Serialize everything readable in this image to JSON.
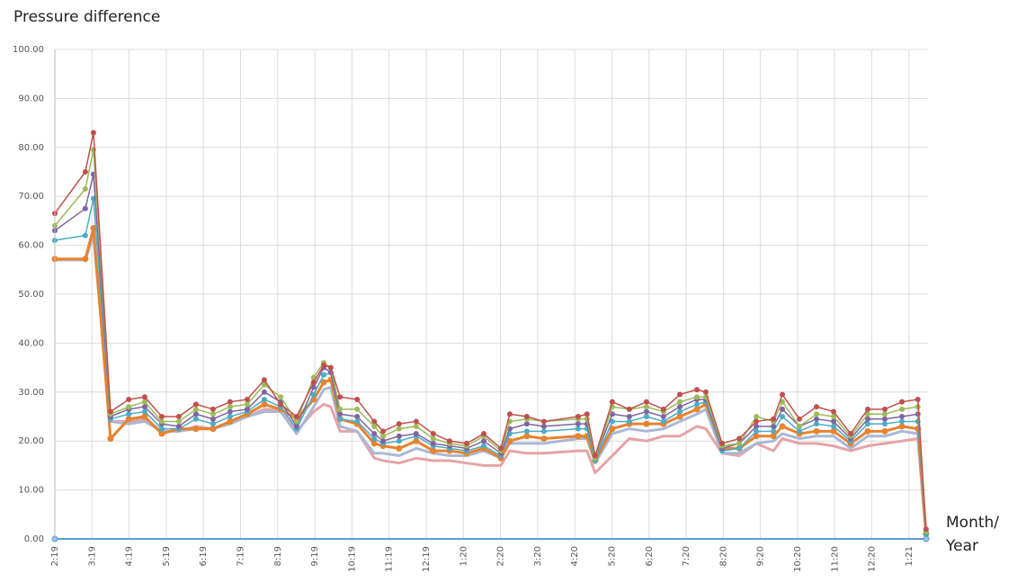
{
  "chart_data": {
    "type": "line",
    "y_label": "Pressure difference",
    "x_label": "Month/ Year",
    "xlim": [
      0,
      23.5
    ],
    "ylim": [
      0,
      100
    ],
    "grid": true,
    "yticks": [
      {
        "value": 0,
        "label": "0.00"
      },
      {
        "value": 10,
        "label": "10.00"
      },
      {
        "value": 20,
        "label": "20.00"
      },
      {
        "value": 30,
        "label": "30.00"
      },
      {
        "value": 40,
        "label": "40.00"
      },
      {
        "value": 50,
        "label": "50.00"
      },
      {
        "value": 60,
        "label": "60.00"
      },
      {
        "value": 70,
        "label": "70.00"
      },
      {
        "value": 80,
        "label": "80.00"
      },
      {
        "value": 90,
        "label": "90.00"
      },
      {
        "value": 100,
        "label": "100.00"
      }
    ],
    "xticks": [
      {
        "value": 0,
        "label": "2:19"
      },
      {
        "value": 1,
        "label": "3:19"
      },
      {
        "value": 2,
        "label": "4:19"
      },
      {
        "value": 3,
        "label": "5:19"
      },
      {
        "value": 4,
        "label": "6:19"
      },
      {
        "value": 5,
        "label": "7:19"
      },
      {
        "value": 6,
        "label": "8:19"
      },
      {
        "value": 7,
        "label": "9:19"
      },
      {
        "value": 8,
        "label": "10:19"
      },
      {
        "value": 9,
        "label": "11:19"
      },
      {
        "value": 10,
        "label": "12:19"
      },
      {
        "value": 11,
        "label": "1:20"
      },
      {
        "value": 12,
        "label": "2:20"
      },
      {
        "value": 13,
        "label": "3:20"
      },
      {
        "value": 14,
        "label": "4:20"
      },
      {
        "value": 15,
        "label": "5:20"
      },
      {
        "value": 16,
        "label": "6:20"
      },
      {
        "value": 17,
        "label": "7:20"
      },
      {
        "value": 18,
        "label": "8:20"
      },
      {
        "value": 19,
        "label": "9:20"
      },
      {
        "value": 20,
        "label": "10:20"
      },
      {
        "value": 21,
        "label": "11:20"
      },
      {
        "value": 22,
        "label": "12:20"
      },
      {
        "value": 23,
        "label": "1:21"
      }
    ],
    "x": [
      0,
      0.82,
      1.04,
      1.5,
      1.99,
      2.42,
      2.88,
      3.34,
      3.8,
      4.26,
      4.72,
      5.18,
      5.64,
      6.08,
      6.51,
      6.97,
      7.24,
      7.43,
      7.68,
      8.14,
      8.6,
      8.84,
      9.27,
      9.73,
      10.19,
      10.63,
      11.09,
      11.55,
      12.01,
      12.25,
      12.71,
      13.17,
      14.09,
      14.33,
      14.55,
      15.01,
      15.47,
      15.93,
      16.39,
      16.83,
      17.29,
      17.53,
      17.97,
      18.43,
      18.89,
      19.35,
      19.59,
      20.05,
      20.51,
      20.97,
      21.43,
      21.89,
      22.35,
      22.81,
      23.24,
      23.46
    ],
    "series": [
      {
        "color": "#e6a3a6",
        "width": 3,
        "markers": false,
        "values": [
          57,
          57,
          62,
          24,
          24,
          24.5,
          22,
          22,
          23,
          22.5,
          24,
          25,
          26.5,
          26.5,
          22,
          26,
          27.5,
          27,
          22,
          22,
          16.5,
          16,
          15.5,
          16.5,
          16,
          16,
          15.5,
          15,
          15,
          18,
          17.5,
          17.5,
          18,
          18,
          13.5,
          17,
          20.5,
          20,
          21,
          21,
          23,
          22.5,
          17.5,
          17,
          19.5,
          18,
          20.5,
          19.5,
          19.5,
          19,
          18,
          19,
          19.5,
          20,
          20.5,
          0.5
        ]
      },
      {
        "color": "#a9b8d6",
        "width": 3,
        "markers": false,
        "values": [
          57,
          57,
          62,
          24,
          23.5,
          24,
          22,
          22,
          22.5,
          22.5,
          23.5,
          25,
          26,
          26,
          21.5,
          27,
          30.5,
          31,
          23,
          22,
          17.5,
          17.5,
          17,
          18.5,
          17.5,
          17,
          17,
          18,
          16.5,
          19.5,
          19.5,
          19.5,
          20.5,
          20.5,
          15.5,
          21.5,
          22.5,
          22,
          22.5,
          24,
          25.5,
          26.5,
          17.5,
          17.5,
          19.5,
          20,
          21.5,
          20.5,
          21,
          21,
          18.5,
          21,
          21,
          22,
          21.5,
          0.5
        ]
      },
      {
        "color": "#e8822e",
        "width": 3,
        "markers": true,
        "values": [
          57.2,
          57.2,
          63.5,
          20.5,
          24.5,
          25,
          21.5,
          22.5,
          22.5,
          22.5,
          24,
          25.5,
          27.5,
          26.5,
          24.5,
          28.5,
          32,
          32.5,
          24.5,
          23.5,
          19.5,
          19,
          18.5,
          20,
          18,
          18,
          17.5,
          18.5,
          16.5,
          20,
          21,
          20.5,
          21,
          21,
          16,
          22.5,
          23.5,
          23.5,
          23.5,
          25,
          26.5,
          27.5,
          18.5,
          18.5,
          21,
          21,
          23,
          21.5,
          22,
          22,
          19.5,
          22,
          22,
          23,
          22.5,
          1
        ]
      },
      {
        "color": "#4bacc6",
        "width": 1.5,
        "markers": true,
        "values": [
          61,
          62,
          69.5,
          24.5,
          25.5,
          26,
          22.5,
          22.5,
          24.5,
          23.5,
          25,
          26,
          28.5,
          27,
          22.5,
          29.5,
          33.5,
          34,
          24.5,
          24,
          20.5,
          19.5,
          20,
          21,
          19,
          18.5,
          18,
          19,
          17,
          21.5,
          22,
          22,
          22.5,
          22.5,
          16,
          24,
          24,
          25,
          24,
          26,
          27.5,
          28,
          18,
          18.5,
          22,
          22,
          25,
          22,
          23.5,
          23,
          20,
          23.5,
          23.5,
          24,
          24,
          1
        ]
      },
      {
        "color": "#8064a2",
        "width": 1.5,
        "markers": true,
        "values": [
          63,
          67.5,
          74.5,
          25,
          26.5,
          27,
          23.5,
          23,
          25.5,
          24.5,
          26,
          26.5,
          30,
          28,
          23,
          31,
          35,
          34,
          25.5,
          25,
          21.5,
          20,
          21,
          21.5,
          19.5,
          19,
          18.5,
          20,
          17.5,
          22.5,
          23.5,
          23,
          23.5,
          23.5,
          16.5,
          25.5,
          25,
          26,
          25,
          27,
          28.5,
          28.5,
          18.5,
          19.5,
          23,
          23,
          26.5,
          23,
          24.5,
          24,
          20.5,
          24.5,
          24.5,
          25,
          25.5,
          1.5
        ]
      },
      {
        "color": "#9bbb59",
        "width": 1.5,
        "markers": true,
        "values": [
          64,
          71.5,
          79.5,
          25.5,
          27,
          28,
          24,
          24,
          26.5,
          25.5,
          27,
          27.5,
          31.5,
          29,
          24,
          33,
          36,
          35,
          26.5,
          26.5,
          23,
          21,
          22.5,
          23,
          20.5,
          19.5,
          19,
          21,
          18,
          24,
          24.5,
          24,
          24.5,
          24.5,
          16.5,
          27,
          26.5,
          27,
          26,
          28,
          29,
          29,
          19,
          19.5,
          25,
          24,
          28,
          23,
          25.5,
          25,
          21,
          25.5,
          25.5,
          26.5,
          27,
          1.5
        ]
      },
      {
        "color": "#c0504d",
        "width": 1.5,
        "markers": true,
        "values": [
          66.5,
          75,
          83,
          26,
          28.5,
          29,
          25,
          25,
          27.5,
          26.5,
          28,
          28.5,
          32.5,
          27.5,
          25,
          32,
          35.5,
          35,
          29,
          28.5,
          24,
          22,
          23.5,
          24,
          21.5,
          20,
          19.5,
          21.5,
          18.5,
          25.5,
          25,
          24,
          25,
          25.5,
          17,
          28,
          26.5,
          28,
          26.5,
          29.5,
          30.5,
          30,
          19.5,
          20.5,
          24,
          24.5,
          29.5,
          24.5,
          27,
          26,
          21.5,
          26.5,
          26.5,
          28,
          28.5,
          2
        ]
      }
    ]
  }
}
